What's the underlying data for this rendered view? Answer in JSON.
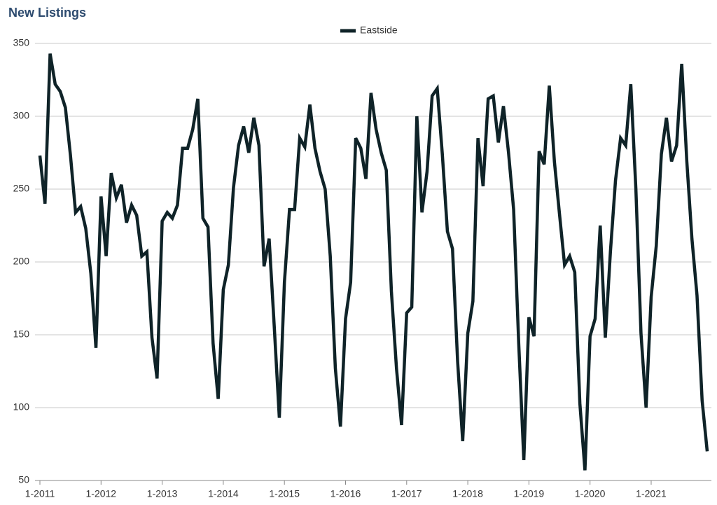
{
  "chart_data": {
    "type": "line",
    "title": "New Listings",
    "categories": [
      "1-2011",
      null,
      null,
      null,
      null,
      null,
      null,
      null,
      null,
      null,
      null,
      null,
      "1-2012",
      null,
      null,
      null,
      null,
      null,
      null,
      null,
      null,
      null,
      null,
      null,
      "1-2013",
      null,
      null,
      null,
      null,
      null,
      null,
      null,
      null,
      null,
      null,
      null,
      "1-2014",
      null,
      null,
      null,
      null,
      null,
      null,
      null,
      null,
      null,
      null,
      null,
      "1-2015",
      null,
      null,
      null,
      null,
      null,
      null,
      null,
      null,
      null,
      null,
      null,
      "1-2016",
      null,
      null,
      null,
      null,
      null,
      null,
      null,
      null,
      null,
      null,
      null,
      "1-2017",
      null,
      null,
      null,
      null,
      null,
      null,
      null,
      null,
      null,
      null,
      null,
      "1-2018",
      null,
      null,
      null,
      null,
      null,
      null,
      null,
      null,
      null,
      null,
      null,
      "1-2019",
      null,
      null,
      null,
      null,
      null,
      null,
      null,
      null,
      null,
      null,
      null,
      "1-2020",
      null,
      null,
      null,
      null,
      null,
      null,
      null,
      null,
      null,
      null,
      null,
      "1-2021",
      null,
      null,
      null,
      null,
      null,
      null,
      null,
      null,
      null,
      null,
      null
    ],
    "series": [
      {
        "name": "Eastside",
        "color": "#0f2328",
        "values": [
          273,
          240,
          343,
          322,
          317,
          306,
          273,
          234,
          238,
          223,
          192,
          141,
          245,
          204,
          261,
          244,
          253,
          227,
          239,
          232,
          204,
          207,
          148,
          120,
          228,
          234,
          230,
          239,
          278,
          278,
          291,
          312,
          230,
          224,
          144,
          106,
          181,
          198,
          251,
          280,
          293,
          275,
          299,
          280,
          197,
          216,
          156,
          93,
          186,
          236,
          236,
          285,
          279,
          308,
          278,
          262,
          250,
          204,
          127,
          87,
          161,
          186,
          285,
          278,
          257,
          316,
          291,
          275,
          263,
          180,
          127,
          88,
          165,
          169,
          300,
          234,
          262,
          314,
          319,
          274,
          221,
          209,
          132,
          77,
          151,
          173,
          285,
          252,
          312,
          314,
          282,
          307,
          275,
          236,
          144,
          64,
          162,
          149,
          276,
          267,
          321,
          269,
          233,
          198,
          204,
          193,
          103,
          57,
          149,
          161,
          225,
          148,
          207,
          256,
          285,
          280,
          322,
          250,
          151,
          100,
          176,
          211,
          274,
          299,
          269,
          280,
          336,
          269,
          216,
          177,
          105,
          70
        ]
      }
    ],
    "ylim": [
      50,
      350
    ],
    "yticks": [
      50,
      100,
      150,
      200,
      250,
      300,
      350
    ],
    "grid": true,
    "legend": "top"
  }
}
